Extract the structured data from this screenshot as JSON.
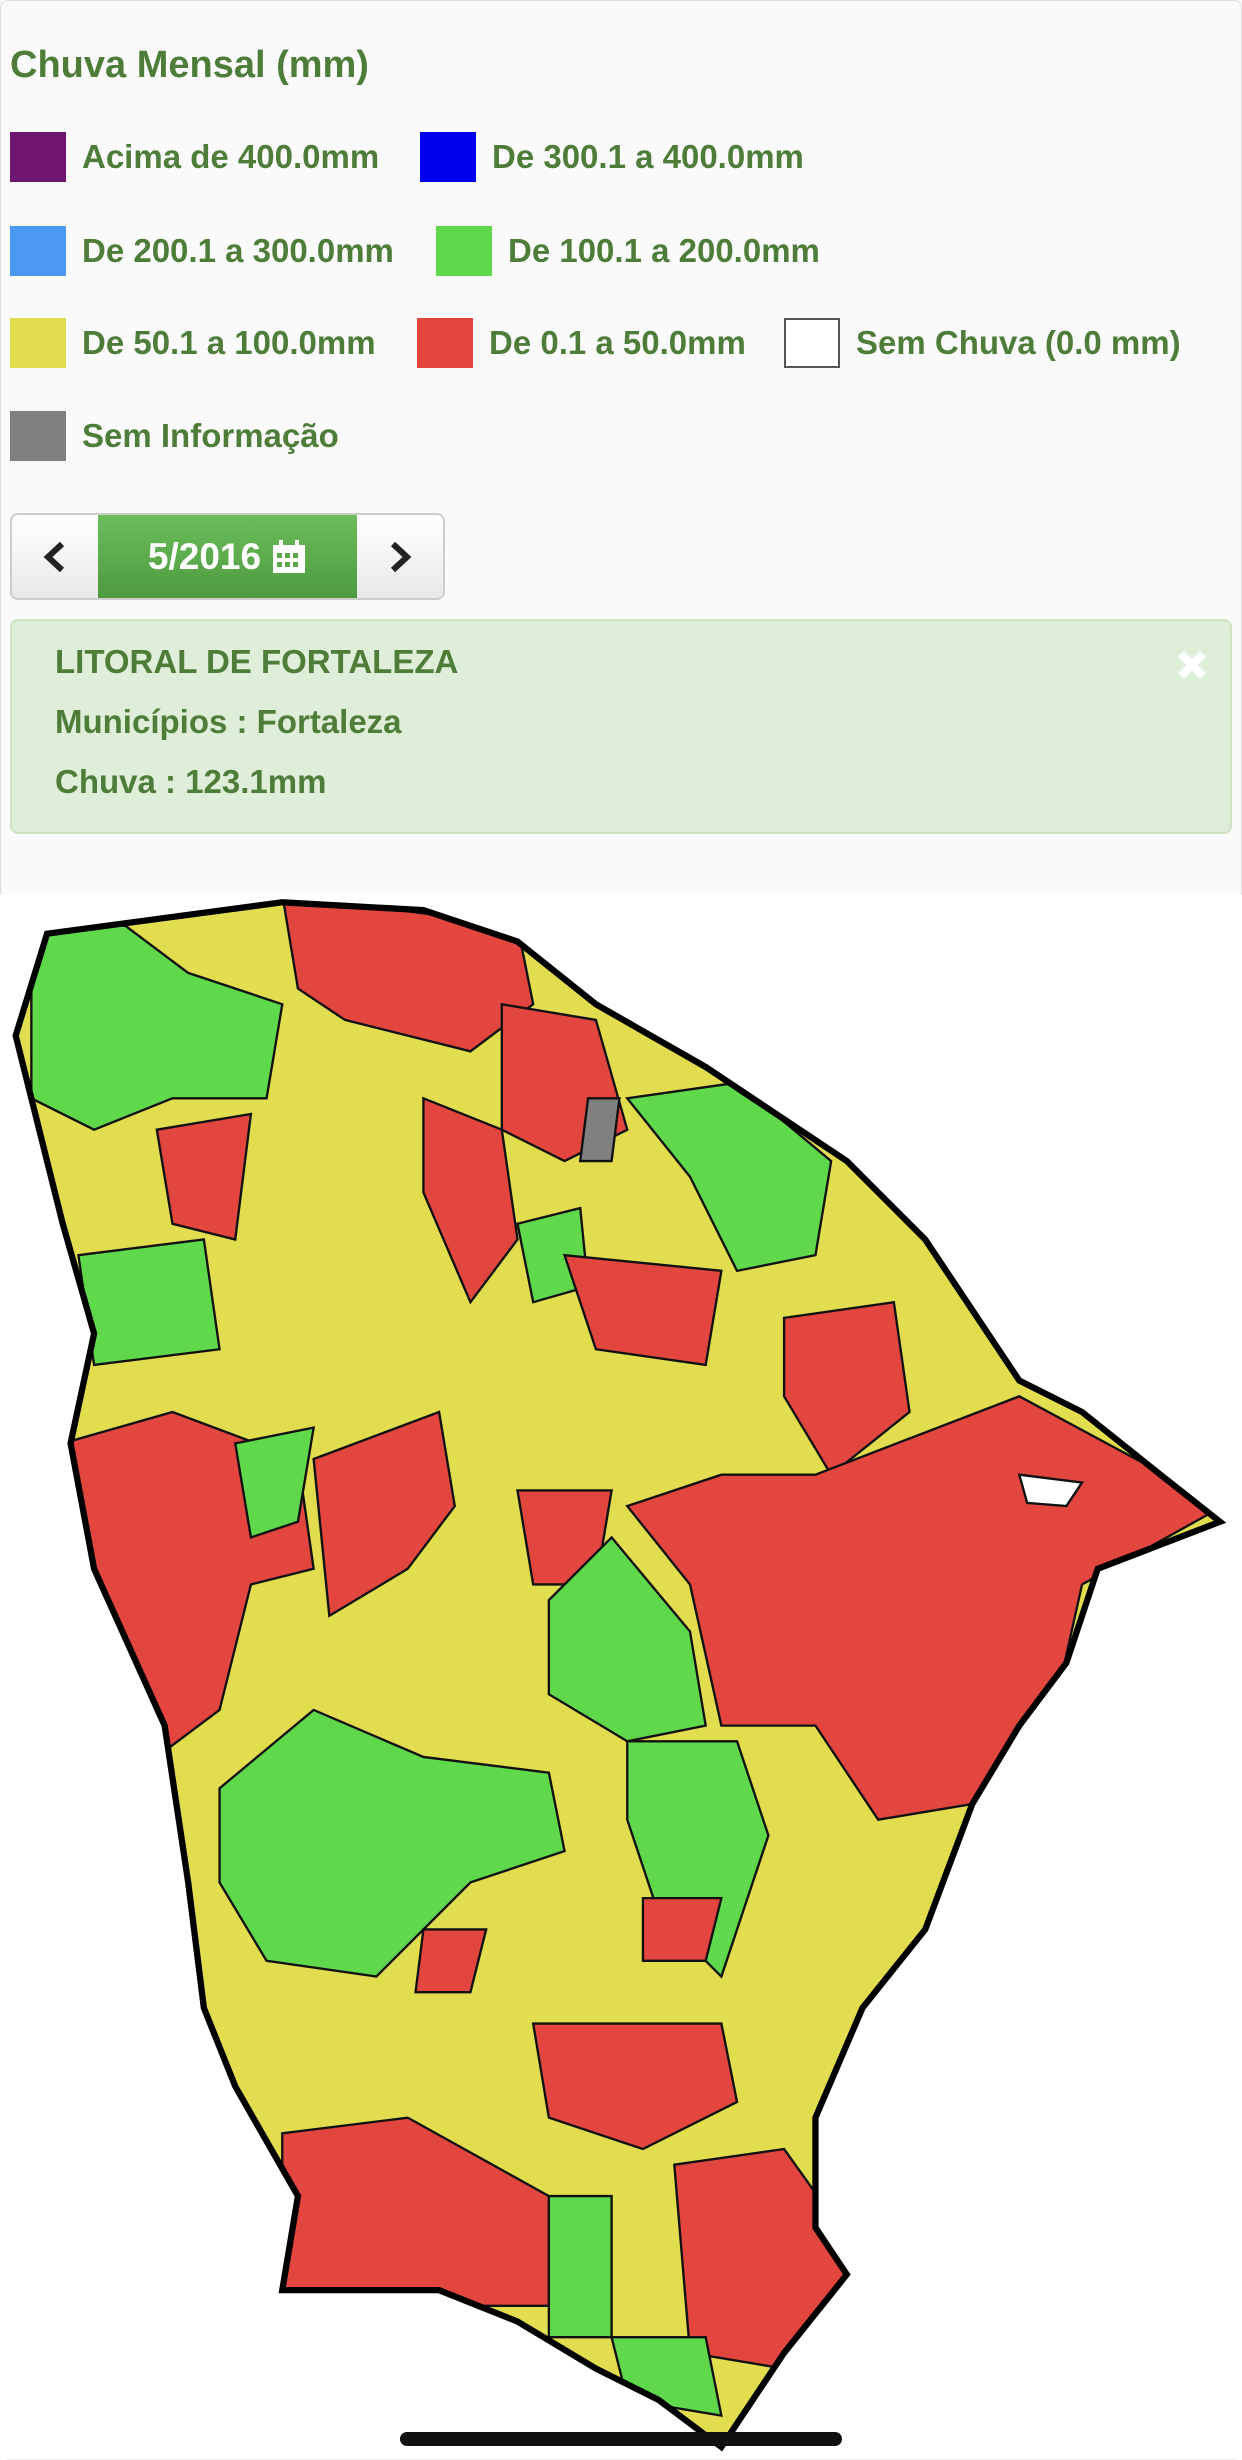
{
  "title": "Chuva Mensal (mm)",
  "legend": [
    {
      "label": "Acima de 400.0mm",
      "color": "#6e1670"
    },
    {
      "label": "De 300.1 a 400.0mm",
      "color": "#0000ee"
    },
    {
      "label": "De 200.1 a 300.0mm",
      "color": "#4a98f0"
    },
    {
      "label": "De 100.1 a 200.0mm",
      "color": "#5fd94b"
    },
    {
      "label": "De 50.1 a 100.0mm",
      "color": "#e2dc4f"
    },
    {
      "label": "De 0.1 a 50.0mm",
      "color": "#e2463f"
    },
    {
      "label": "Sem Chuva (0.0 mm)",
      "color": "#ffffff"
    },
    {
      "label": "Sem Informação",
      "color": "#808080"
    }
  ],
  "date": "5/2016",
  "info": {
    "region": "LITORAL DE FORTALEZA",
    "municipios": "Municípios : Fortaleza",
    "chuva": "Chuva : 123.1mm"
  }
}
